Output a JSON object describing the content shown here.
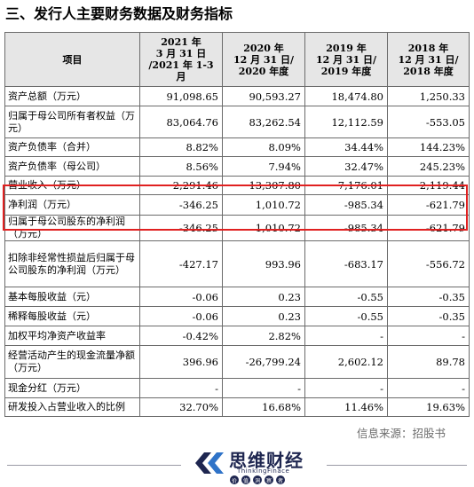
{
  "page": {
    "heading": "三、发行人主要财务数据及财务指标",
    "source": "信息来源：招股书"
  },
  "table": {
    "header": {
      "item": "项目",
      "col1": [
        "2021 年",
        "3 月 31 日",
        "/2021 年 1-3 月"
      ],
      "col2": [
        "2020 年",
        "12 月 31 日/",
        "2020 年度"
      ],
      "col3": [
        "2019 年",
        "12 月 31 日/",
        "2019 年度"
      ],
      "col4": [
        "2018 年",
        "12 月 31 日/",
        "2018 年度"
      ]
    },
    "rows": [
      {
        "label": "资产总额（万元）",
        "v": [
          "91,098.65",
          "90,593.27",
          "18,474.80",
          "1,250.33"
        ]
      },
      {
        "label": "归属于母公司所有者权益（万元）",
        "v": [
          "83,064.76",
          "83,262.54",
          "12,112.59",
          "-553.05"
        ]
      },
      {
        "label": "资产负债率（合并）",
        "v": [
          "8.82%",
          "8.09%",
          "34.44%",
          "144.23%"
        ]
      },
      {
        "label": "资产负债率（母公司）",
        "v": [
          "8.56%",
          "7.94%",
          "32.47%",
          "245.23%"
        ]
      },
      {
        "label": "营业收入（万元）",
        "v": [
          "2,291.46",
          "13,307.80",
          "7,176.01",
          "2,119.44"
        ]
      },
      {
        "label": "净利润（万元）",
        "v": [
          "-346.25",
          "1,010.72",
          "-985.34",
          "-621.79"
        ]
      },
      {
        "label": "归属于母公司股东的净利润（万元）",
        "v": [
          "-346.25",
          "1,010.72",
          "-985.34",
          "-621.79"
        ]
      },
      {
        "label": "扣除非经常性损益后归属于母公司股东的净利润（万元）",
        "v": [
          "-427.17",
          "993.96",
          "-683.17",
          "-556.72"
        ]
      },
      {
        "label": "基本每股收益（元）",
        "v": [
          "-0.06",
          "0.23",
          "-0.55",
          "-0.35"
        ]
      },
      {
        "label": "稀释每股收益（元）",
        "v": [
          "-0.06",
          "0.23",
          "-0.55",
          "-0.35"
        ]
      },
      {
        "label": "加权平均净资产收益率",
        "v": [
          "-0.42%",
          "2.82%",
          "-",
          "-"
        ]
      },
      {
        "label": "经营活动产生的现金流量净额（万元）",
        "v": [
          "396.96",
          "-26,799.24",
          "2,602.12",
          "89.78"
        ]
      },
      {
        "label": "现金分红（万元）",
        "v": [
          "-",
          "-",
          "-",
          "-"
        ]
      },
      {
        "label": "研发投入占营业收入的比例",
        "v": [
          "32.70%",
          "16.68%",
          "11.46%",
          "19.63%"
        ]
      }
    ]
  },
  "brand": {
    "name_cn": "思维财经",
    "name_en": "ThinkingFinace",
    "tags": [
      "价",
      "值",
      "洞",
      "察",
      "者"
    ]
  },
  "colors": {
    "highlight": "#e02020",
    "header_bg": "#e6e6e6",
    "brand_navy": "#1e2650"
  }
}
